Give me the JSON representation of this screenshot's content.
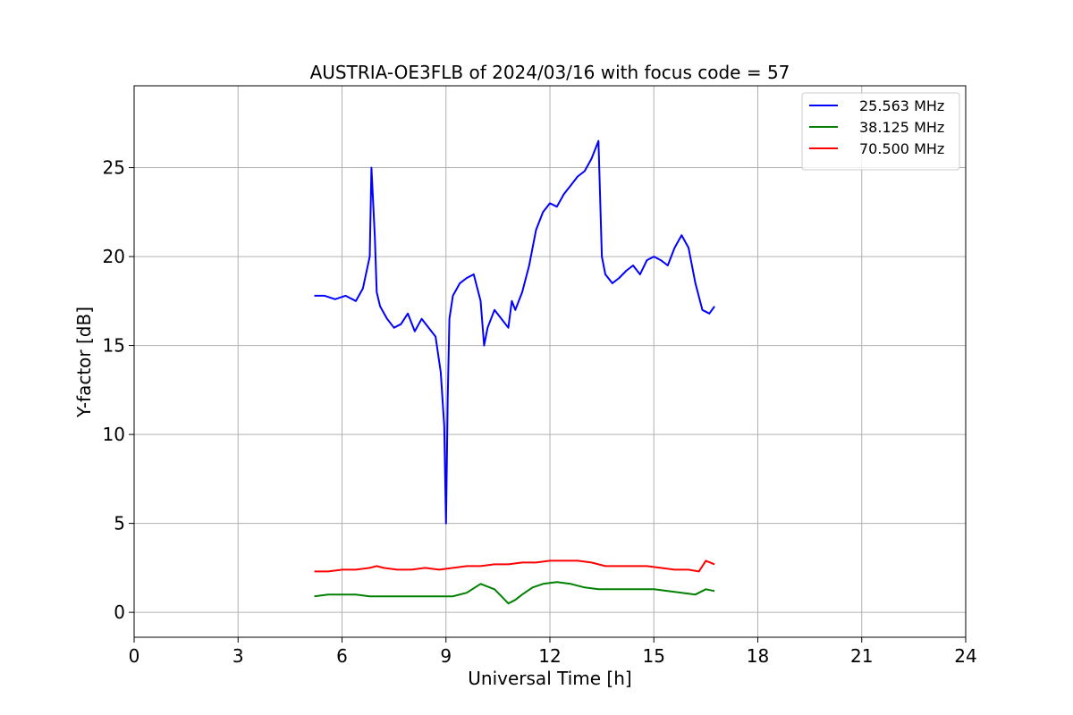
{
  "chart_data": {
    "type": "line",
    "title": "AUSTRIA-OE3FLB of 2024/03/16 with focus code = 57",
    "xlabel": "Universal Time [h]",
    "ylabel": "Y-factor [dB]",
    "xlim": [
      0,
      24
    ],
    "ylim": [
      -1.4,
      29.6
    ],
    "xticks": [
      0,
      3,
      6,
      9,
      12,
      15,
      18,
      21,
      24
    ],
    "yticks": [
      0,
      5,
      10,
      15,
      20,
      25
    ],
    "grid": true,
    "legend_position": "top-right",
    "series": [
      {
        "name": "25.563 MHz",
        "color": "#0000ff",
        "x": [
          5.2,
          5.5,
          5.8,
          6.1,
          6.4,
          6.6,
          6.8,
          6.85,
          6.95,
          7.0,
          7.1,
          7.3,
          7.5,
          7.7,
          7.9,
          8.1,
          8.3,
          8.5,
          8.7,
          8.85,
          8.95,
          9.0,
          9.05,
          9.1,
          9.2,
          9.4,
          9.6,
          9.8,
          10.0,
          10.1,
          10.2,
          10.4,
          10.6,
          10.8,
          10.9,
          11.0,
          11.2,
          11.4,
          11.6,
          11.8,
          12.0,
          12.2,
          12.4,
          12.6,
          12.8,
          13.0,
          13.2,
          13.4,
          13.5,
          13.6,
          13.8,
          14.0,
          14.2,
          14.4,
          14.6,
          14.8,
          15.0,
          15.2,
          15.4,
          15.6,
          15.8,
          16.0,
          16.2,
          16.4,
          16.6,
          16.75
        ],
        "y": [
          17.8,
          17.8,
          17.6,
          17.8,
          17.5,
          18.2,
          20.0,
          25.0,
          21.0,
          18.0,
          17.2,
          16.5,
          16.0,
          16.2,
          16.8,
          15.8,
          16.5,
          16.0,
          15.5,
          13.5,
          10.5,
          5.0,
          12.0,
          16.5,
          17.8,
          18.5,
          18.8,
          19.0,
          17.5,
          15.0,
          16.0,
          17.0,
          16.5,
          16.0,
          17.5,
          17.0,
          18.0,
          19.5,
          21.5,
          22.5,
          23.0,
          22.8,
          23.5,
          24.0,
          24.5,
          24.8,
          25.5,
          26.5,
          20.0,
          19.0,
          18.5,
          18.8,
          19.2,
          19.5,
          19.0,
          19.8,
          20.0,
          19.8,
          19.5,
          20.5,
          21.2,
          20.5,
          18.5,
          17.0,
          16.8,
          17.2
        ]
      },
      {
        "name": "38.125 MHz",
        "color": "#008000",
        "x": [
          5.2,
          5.6,
          6.0,
          6.4,
          6.8,
          7.2,
          7.6,
          8.0,
          8.4,
          8.8,
          9.2,
          9.6,
          10.0,
          10.4,
          10.6,
          10.8,
          11.0,
          11.2,
          11.5,
          11.8,
          12.2,
          12.6,
          13.0,
          13.4,
          13.8,
          14.2,
          14.6,
          15.0,
          15.4,
          15.8,
          16.2,
          16.5,
          16.75
        ],
        "y": [
          0.9,
          1.0,
          1.0,
          1.0,
          0.9,
          0.9,
          0.9,
          0.9,
          0.9,
          0.9,
          0.9,
          1.1,
          1.6,
          1.3,
          0.9,
          0.5,
          0.7,
          1.0,
          1.4,
          1.6,
          1.7,
          1.6,
          1.4,
          1.3,
          1.3,
          1.3,
          1.3,
          1.3,
          1.2,
          1.1,
          1.0,
          1.3,
          1.2
        ]
      },
      {
        "name": "70.500 MHz",
        "color": "#ff0000",
        "x": [
          5.2,
          5.6,
          6.0,
          6.4,
          6.8,
          7.0,
          7.2,
          7.6,
          8.0,
          8.4,
          8.8,
          9.2,
          9.6,
          10.0,
          10.4,
          10.8,
          11.2,
          11.6,
          12.0,
          12.4,
          12.8,
          13.2,
          13.6,
          14.0,
          14.4,
          14.8,
          15.2,
          15.6,
          16.0,
          16.3,
          16.5,
          16.75
        ],
        "y": [
          2.3,
          2.3,
          2.4,
          2.4,
          2.5,
          2.6,
          2.5,
          2.4,
          2.4,
          2.5,
          2.4,
          2.5,
          2.6,
          2.6,
          2.7,
          2.7,
          2.8,
          2.8,
          2.9,
          2.9,
          2.9,
          2.8,
          2.6,
          2.6,
          2.6,
          2.6,
          2.5,
          2.4,
          2.4,
          2.3,
          2.9,
          2.7
        ]
      }
    ]
  }
}
